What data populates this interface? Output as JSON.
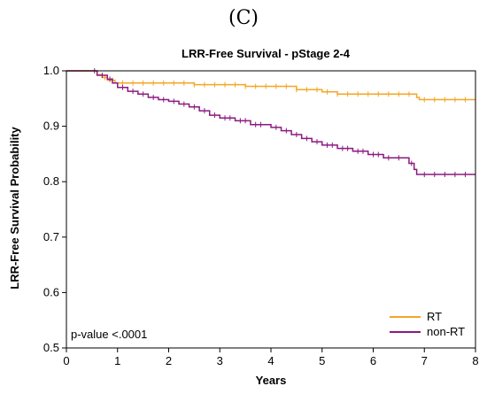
{
  "figure_label": "(C)",
  "chart_data": {
    "type": "line",
    "title": "LRR-Free Survival - pStage 2-4",
    "xlabel": "Years",
    "ylabel": "LRR-Free Survival Probability",
    "xlim": [
      0,
      8
    ],
    "ylim": [
      0.5,
      1.0
    ],
    "x_ticks": [
      0,
      1,
      2,
      3,
      4,
      5,
      6,
      7,
      8
    ],
    "y_ticks": [
      "0.5",
      "0.6",
      "0.7",
      "0.8",
      "0.9",
      "1.0"
    ],
    "step": true,
    "grid": false,
    "legend_position": "bottom-right",
    "annotation": "p-value <.0001",
    "series": [
      {
        "name": "RT",
        "color": "#f5a623",
        "points": [
          [
            0,
            1.0
          ],
          [
            0.5,
            1.0
          ],
          [
            0.6,
            0.993
          ],
          [
            0.7,
            0.988
          ],
          [
            0.8,
            0.983
          ],
          [
            0.95,
            0.978
          ],
          [
            1.5,
            0.978
          ],
          [
            2.5,
            0.975
          ],
          [
            3.5,
            0.972
          ],
          [
            4.5,
            0.966
          ],
          [
            5.0,
            0.962
          ],
          [
            5.3,
            0.958
          ],
          [
            6.0,
            0.958
          ],
          [
            6.85,
            0.952
          ],
          [
            6.9,
            0.948
          ],
          [
            8.0,
            0.948
          ]
        ],
        "censor_x": [
          0.75,
          0.9,
          1.1,
          1.3,
          1.5,
          1.7,
          1.9,
          2.1,
          2.3,
          2.5,
          2.7,
          2.9,
          3.1,
          3.3,
          3.5,
          3.7,
          3.9,
          4.1,
          4.3,
          4.5,
          4.7,
          4.9,
          5.1,
          5.3,
          5.5,
          5.7,
          5.9,
          6.1,
          6.3,
          6.5,
          6.7,
          7.0,
          7.2,
          7.4,
          7.6,
          7.8,
          8.0
        ]
      },
      {
        "name": "non-RT",
        "color": "#8b1a7f",
        "points": [
          [
            0,
            1.0
          ],
          [
            0.5,
            1.0
          ],
          [
            0.6,
            0.992
          ],
          [
            0.8,
            0.985
          ],
          [
            0.9,
            0.978
          ],
          [
            1.0,
            0.97
          ],
          [
            1.2,
            0.963
          ],
          [
            1.4,
            0.958
          ],
          [
            1.6,
            0.952
          ],
          [
            1.8,
            0.948
          ],
          [
            2.0,
            0.945
          ],
          [
            2.2,
            0.94
          ],
          [
            2.4,
            0.935
          ],
          [
            2.6,
            0.928
          ],
          [
            2.8,
            0.92
          ],
          [
            3.0,
            0.915
          ],
          [
            3.3,
            0.91
          ],
          [
            3.6,
            0.903
          ],
          [
            4.0,
            0.898
          ],
          [
            4.2,
            0.892
          ],
          [
            4.4,
            0.885
          ],
          [
            4.6,
            0.878
          ],
          [
            4.8,
            0.872
          ],
          [
            5.0,
            0.866
          ],
          [
            5.3,
            0.86
          ],
          [
            5.6,
            0.855
          ],
          [
            5.9,
            0.849
          ],
          [
            6.2,
            0.843
          ],
          [
            6.6,
            0.843
          ],
          [
            6.7,
            0.833
          ],
          [
            6.8,
            0.822
          ],
          [
            6.85,
            0.813
          ],
          [
            8.0,
            0.813
          ]
        ],
        "censor_x": [
          0.55,
          0.7,
          0.85,
          1.1,
          1.3,
          1.5,
          1.7,
          1.9,
          2.1,
          2.3,
          2.5,
          2.7,
          2.9,
          3.1,
          3.2,
          3.4,
          3.5,
          3.7,
          3.8,
          4.1,
          4.3,
          4.5,
          4.7,
          4.9,
          5.1,
          5.2,
          5.4,
          5.5,
          5.7,
          5.8,
          6.0,
          6.1,
          6.3,
          6.5,
          6.75,
          7.0,
          7.2,
          7.4,
          7.6,
          7.8,
          8.0
        ]
      }
    ]
  }
}
